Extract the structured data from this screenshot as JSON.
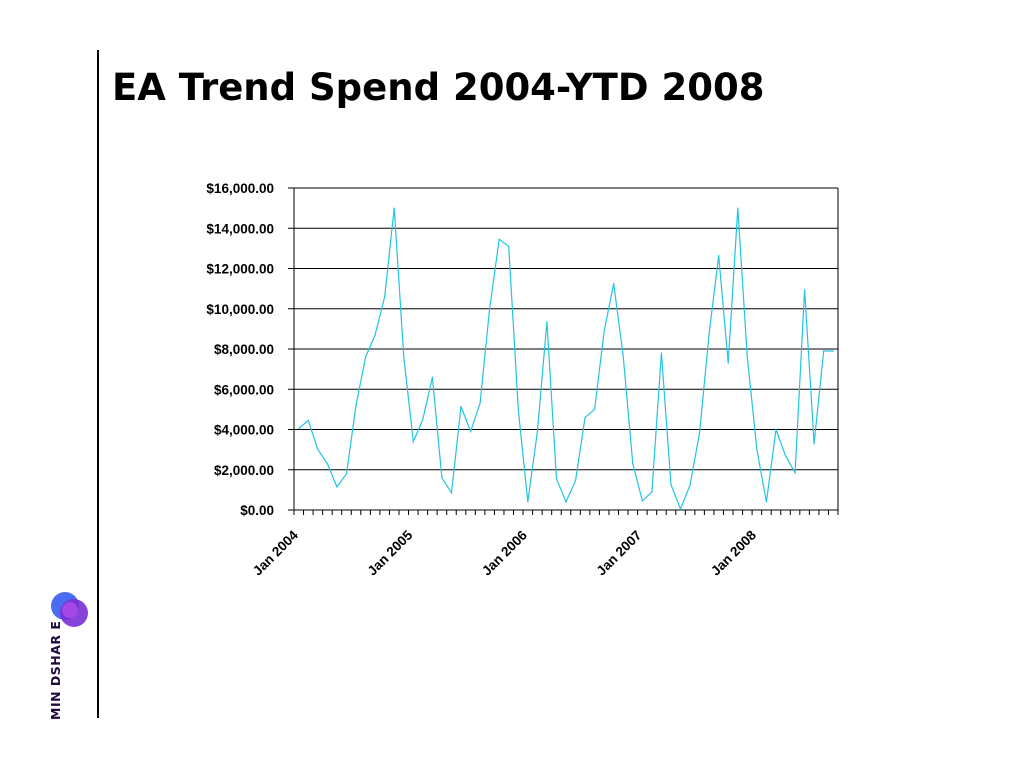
{
  "slide": {
    "title": "EA Trend Spend 2004-YTD 2008"
  },
  "brand": {
    "text": "MIN DSHAR E",
    "colors": [
      "#3d7df2",
      "#7b2fd6",
      "#5c1a8a"
    ]
  },
  "chart_data": {
    "type": "line",
    "title": "",
    "xlabel": "",
    "ylabel": "",
    "line_color": "#22c4e0",
    "grid": true,
    "ylim": [
      0,
      16000
    ],
    "y_ticks": [
      "$0.00",
      "$2,000.00",
      "$4,000.00",
      "$6,000.00",
      "$8,000.00",
      "$10,000.00",
      "$12,000.00",
      "$14,000.00",
      "$16,000.00"
    ],
    "x_tick_labels": [
      "Jan 2004",
      "Jan 2005",
      "Jan 2006",
      "Jan 2007",
      "Jan 2008"
    ],
    "x_tick_label_months": [
      "2004-01",
      "2005-01",
      "2006-01",
      "2007-01",
      "2008-01"
    ],
    "x": [
      "2004-01",
      "2004-02",
      "2004-03",
      "2004-04",
      "2004-05",
      "2004-06",
      "2004-07",
      "2004-08",
      "2004-09",
      "2004-10",
      "2004-11",
      "2004-12",
      "2005-01",
      "2005-02",
      "2005-03",
      "2005-04",
      "2005-05",
      "2005-06",
      "2005-07",
      "2005-08",
      "2005-09",
      "2005-10",
      "2005-11",
      "2005-12",
      "2006-01",
      "2006-02",
      "2006-03",
      "2006-04",
      "2006-05",
      "2006-06",
      "2006-07",
      "2006-08",
      "2006-09",
      "2006-10",
      "2006-11",
      "2006-12",
      "2007-01",
      "2007-02",
      "2007-03",
      "2007-04",
      "2007-05",
      "2007-06",
      "2007-07",
      "2007-08",
      "2007-09",
      "2007-10",
      "2007-11",
      "2007-12",
      "2008-01",
      "2008-02",
      "2008-03",
      "2008-04",
      "2008-05",
      "2008-06",
      "2008-07",
      "2008-08",
      "2008-09"
    ],
    "series": [
      {
        "values": [
          4050,
          4450,
          3000,
          2300,
          1150,
          1800,
          5200,
          7600,
          8700,
          10600,
          15000,
          7600,
          3400,
          4500,
          6600,
          1600,
          850,
          5150,
          3900,
          5300,
          10000,
          13450,
          13100,
          5000,
          400,
          3900,
          9350,
          1550,
          400,
          1450,
          4600,
          5000,
          8900,
          11250,
          7600,
          2300,
          450,
          900,
          7800,
          1250,
          50,
          1250,
          3850,
          8800,
          12650,
          7300,
          15000,
          7600,
          3000,
          400,
          4000,
          2700,
          1850,
          10950,
          3300,
          7900,
          7900
        ]
      }
    ]
  }
}
